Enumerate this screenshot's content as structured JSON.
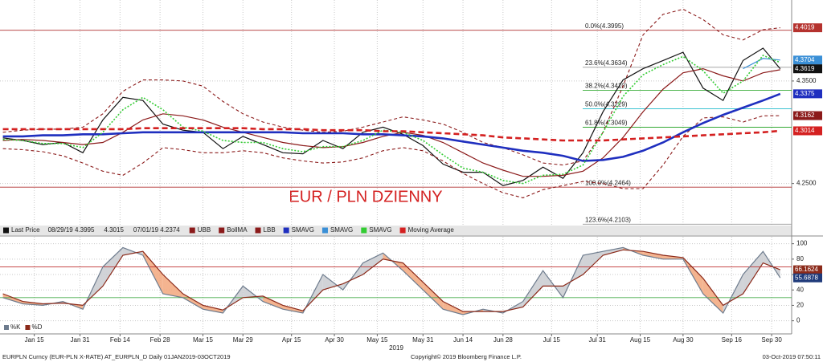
{
  "chart_data": [
    {
      "type": "line",
      "annotation": "EUR / PLN DZIENNY",
      "x": [
        "2019-01-04",
        "2019-01-11",
        "2019-01-18",
        "2019-01-25",
        "2019-02-01",
        "2019-02-08",
        "2019-02-15",
        "2019-02-22",
        "2019-03-01",
        "2019-03-08",
        "2019-03-15",
        "2019-03-22",
        "2019-03-29",
        "2019-04-05",
        "2019-04-12",
        "2019-04-19",
        "2019-04-26",
        "2019-05-03",
        "2019-05-10",
        "2019-05-17",
        "2019-05-24",
        "2019-05-31",
        "2019-06-07",
        "2019-06-14",
        "2019-06-21",
        "2019-06-28",
        "2019-07-05",
        "2019-07-12",
        "2019-07-19",
        "2019-07-26",
        "2019-08-02",
        "2019-08-09",
        "2019-08-16",
        "2019-08-23",
        "2019-08-30",
        "2019-09-06",
        "2019-09-13",
        "2019-09-20",
        "2019-09-27",
        "2019-10-03"
      ],
      "xlim": [
        "2019-01-03",
        "2019-10-07"
      ],
      "ylim": [
        4.209,
        4.429
      ],
      "yticks": [
        {
          "value": 4.25,
          "label": "4.2500"
        },
        {
          "value": 4.35,
          "label": "4.3500"
        }
      ],
      "grid": true,
      "legend_stats": [
        "08/29/19 4.3995",
        "4.3015",
        "07/01/19 4.2374"
      ],
      "series": [
        {
          "name": "Last Price",
          "color": "#111111",
          "style": "solid",
          "values": [
            4.2945,
            4.292,
            4.288,
            4.29,
            4.28,
            4.312,
            4.334,
            4.331,
            4.308,
            4.302,
            4.3,
            4.284,
            4.296,
            4.288,
            4.28,
            4.279,
            4.292,
            4.284,
            4.3,
            4.305,
            4.298,
            4.287,
            4.269,
            4.261,
            4.261,
            4.248,
            4.253,
            4.266,
            4.255,
            4.28,
            4.32,
            4.351,
            4.362,
            4.37,
            4.378,
            4.343,
            4.331,
            4.37,
            4.382,
            4.3619
          ]
        },
        {
          "name": "UBB",
          "color": "#8b1a1a",
          "style": "dashed",
          "values": [
            4.3,
            4.302,
            4.303,
            4.303,
            4.305,
            4.318,
            4.34,
            4.351,
            4.351,
            4.35,
            4.345,
            4.33,
            4.318,
            4.31,
            4.305,
            4.302,
            4.3,
            4.301,
            4.305,
            4.31,
            4.315,
            4.312,
            4.308,
            4.3,
            4.29,
            4.285,
            4.278,
            4.27,
            4.268,
            4.272,
            4.3,
            4.345,
            4.395,
            4.415,
            4.42,
            4.41,
            4.395,
            4.39,
            4.4,
            4.4019
          ]
        },
        {
          "name": "BollMA",
          "color": "#8b1a1a",
          "style": "solid",
          "values": [
            4.292,
            4.293,
            4.292,
            4.29,
            4.288,
            4.29,
            4.3,
            4.312,
            4.318,
            4.316,
            4.312,
            4.305,
            4.3,
            4.295,
            4.29,
            4.287,
            4.285,
            4.286,
            4.29,
            4.296,
            4.3,
            4.297,
            4.29,
            4.28,
            4.27,
            4.263,
            4.257,
            4.257,
            4.258,
            4.262,
            4.275,
            4.295,
            4.32,
            4.342,
            4.358,
            4.362,
            4.355,
            4.35,
            4.358,
            4.361
          ]
        },
        {
          "name": "LBB",
          "color": "#8b1a1a",
          "style": "dashed",
          "values": [
            4.284,
            4.283,
            4.281,
            4.277,
            4.27,
            4.262,
            4.258,
            4.27,
            4.285,
            4.283,
            4.28,
            4.28,
            4.282,
            4.28,
            4.275,
            4.272,
            4.27,
            4.271,
            4.275,
            4.282,
            4.285,
            4.282,
            4.272,
            4.26,
            4.25,
            4.241,
            4.236,
            4.244,
            4.248,
            4.252,
            4.25,
            4.245,
            4.245,
            4.268,
            4.296,
            4.314,
            4.315,
            4.31,
            4.316,
            4.3162
          ]
        },
        {
          "name": "SMAVG",
          "color": "#1f2fbf",
          "style": "thick",
          "values": [
            4.296,
            4.296,
            4.297,
            4.297,
            4.298,
            4.298,
            4.299,
            4.3,
            4.3,
            4.3,
            4.3,
            4.3,
            4.3,
            4.3,
            4.3,
            4.299,
            4.299,
            4.299,
            4.298,
            4.298,
            4.297,
            4.296,
            4.294,
            4.291,
            4.288,
            4.285,
            4.282,
            4.28,
            4.277,
            4.272,
            4.273,
            4.276,
            4.282,
            4.29,
            4.3,
            4.309,
            4.317,
            4.324,
            4.331,
            4.3375
          ]
        },
        {
          "name": "SMAVG",
          "color": "#3a8fd6",
          "style": "solid",
          "values": [
            null,
            null,
            null,
            null,
            null,
            null,
            null,
            null,
            null,
            null,
            null,
            null,
            null,
            null,
            null,
            null,
            null,
            null,
            null,
            null,
            null,
            null,
            null,
            null,
            null,
            null,
            null,
            null,
            null,
            null,
            null,
            null,
            null,
            null,
            null,
            null,
            null,
            4.362,
            4.372,
            4.3704
          ]
        },
        {
          "name": "SMAVG",
          "color": "#33cc33",
          "style": "dotted",
          "values": [
            4.293,
            4.292,
            4.289,
            4.289,
            4.285,
            4.3,
            4.322,
            4.334,
            4.322,
            4.305,
            4.301,
            4.292,
            4.29,
            4.29,
            4.284,
            4.281,
            4.286,
            4.286,
            4.292,
            4.302,
            4.3,
            4.292,
            4.278,
            4.265,
            4.261,
            4.253,
            4.25,
            4.258,
            4.259,
            4.268,
            4.3,
            4.335,
            4.356,
            4.366,
            4.374,
            4.36,
            4.338,
            4.35,
            4.375,
            4.368
          ]
        },
        {
          "name": "Moving Average",
          "color": "#d42020",
          "style": "thick-dashed",
          "values": [
            4.303,
            4.303,
            4.303,
            4.303,
            4.303,
            4.303,
            4.303,
            4.304,
            4.304,
            4.304,
            4.304,
            4.304,
            4.304,
            4.303,
            4.303,
            4.303,
            4.302,
            4.302,
            4.302,
            4.301,
            4.301,
            4.3,
            4.299,
            4.298,
            4.297,
            4.295,
            4.294,
            4.293,
            4.292,
            4.292,
            4.292,
            4.293,
            4.294,
            4.295,
            4.296,
            4.297,
            4.298,
            4.299,
            4.3,
            4.3014
          ]
        }
      ],
      "levels": [
        {
          "label": "0.0%(4.3995)",
          "value": 4.3995,
          "color": "#b03030"
        },
        {
          "label": "23.6%(4.3634)",
          "value": 4.3634,
          "color": "#999999"
        },
        {
          "label": "38.2%(4.3410)",
          "value": 4.341,
          "color": "#33aa33"
        },
        {
          "label": "50.0%(4.3229)",
          "value": 4.3229,
          "color": "#22bbcc"
        },
        {
          "label": "61.8%(4.3049)",
          "value": 4.3049,
          "color": "#33aa33"
        },
        {
          "label": "100.0%(4.2464)",
          "value": 4.2464,
          "color": "#b03030"
        },
        {
          "label": "123.6%(4.2103)",
          "value": 4.2103,
          "color": "#999999"
        }
      ],
      "axis_boxes": [
        {
          "value": 4.4019,
          "color": "#b5322e"
        },
        {
          "value": 4.3704,
          "color": "#3a8fd6"
        },
        {
          "value": 4.3619,
          "color": "#111111"
        },
        {
          "value": 4.3375,
          "color": "#1f2fbf"
        },
        {
          "value": 4.3162,
          "color": "#8b1a1a"
        },
        {
          "value": 4.3014,
          "color": "#d42020"
        }
      ]
    },
    {
      "type": "stochastic",
      "x_label": "2019",
      "x": [
        "2019-01-04",
        "2019-01-11",
        "2019-01-18",
        "2019-01-25",
        "2019-02-01",
        "2019-02-08",
        "2019-02-15",
        "2019-02-22",
        "2019-03-01",
        "2019-03-08",
        "2019-03-15",
        "2019-03-22",
        "2019-03-29",
        "2019-04-05",
        "2019-04-12",
        "2019-04-19",
        "2019-04-26",
        "2019-05-03",
        "2019-05-10",
        "2019-05-17",
        "2019-05-24",
        "2019-05-31",
        "2019-06-07",
        "2019-06-14",
        "2019-06-21",
        "2019-06-28",
        "2019-07-05",
        "2019-07-12",
        "2019-07-19",
        "2019-07-26",
        "2019-08-02",
        "2019-08-09",
        "2019-08-16",
        "2019-08-23",
        "2019-08-30",
        "2019-09-06",
        "2019-09-13",
        "2019-09-20",
        "2019-09-27",
        "2019-10-03"
      ],
      "xlim": [
        "2019-01-03",
        "2019-10-07"
      ],
      "xticks": [
        {
          "value": "2019-01-15",
          "label": "Jan 15"
        },
        {
          "value": "2019-01-31",
          "label": "Jan 31"
        },
        {
          "value": "2019-02-14",
          "label": "Feb 14"
        },
        {
          "value": "2019-02-28",
          "label": "Feb 28"
        },
        {
          "value": "2019-03-15",
          "label": "Mar 15"
        },
        {
          "value": "2019-03-29",
          "label": "Mar 29"
        },
        {
          "value": "2019-04-15",
          "label": "Apr 15"
        },
        {
          "value": "2019-04-30",
          "label": "Apr 30"
        },
        {
          "value": "2019-05-15",
          "label": "May 15"
        },
        {
          "value": "2019-05-31",
          "label": "May 31"
        },
        {
          "value": "2019-06-14",
          "label": "Jun 14"
        },
        {
          "value": "2019-06-28",
          "label": "Jun 28"
        },
        {
          "value": "2019-07-15",
          "label": "Jul 15"
        },
        {
          "value": "2019-07-31",
          "label": "Jul 31"
        },
        {
          "value": "2019-08-15",
          "label": "Aug 15"
        },
        {
          "value": "2019-08-30",
          "label": "Aug 30"
        },
        {
          "value": "2019-09-16",
          "label": "Sep 16"
        },
        {
          "value": "2019-09-30",
          "label": "Sep 30"
        }
      ],
      "ylim": [
        -16,
        109
      ],
      "yticks": [
        0,
        20,
        40,
        60,
        80,
        100
      ],
      "grid": true,
      "series": [
        {
          "name": "%K",
          "color": "#6d7b8d",
          "values": [
            30,
            22,
            20,
            25,
            15,
            70,
            95,
            85,
            35,
            30,
            15,
            10,
            45,
            25,
            15,
            10,
            60,
            40,
            75,
            88,
            65,
            40,
            15,
            8,
            15,
            10,
            25,
            65,
            30,
            85,
            90,
            95,
            85,
            80,
            80,
            35,
            10,
            60,
            90,
            55.6878
          ]
        },
        {
          "name": "%D",
          "color": "#8b2a1a",
          "values": [
            35,
            25,
            22,
            23,
            20,
            45,
            85,
            90,
            60,
            35,
            20,
            14,
            30,
            32,
            20,
            13,
            40,
            48,
            60,
            80,
            75,
            50,
            25,
            12,
            12,
            12,
            18,
            45,
            45,
            60,
            85,
            92,
            90,
            85,
            82,
            55,
            20,
            35,
            75,
            66.1624
          ]
        }
      ],
      "levels": [
        {
          "value": 70,
          "color": "#c03030"
        },
        {
          "value": 30,
          "color": "#4caf50"
        }
      ],
      "axis_boxes": [
        {
          "value": 66.1624,
          "color": "#8b2a1a"
        },
        {
          "value": 55.6878,
          "color": "#1f3a7a"
        }
      ]
    }
  ],
  "footer": {
    "left": "EURPLN Curncy (EUR-PLN X-RATE) AT_EURPLN_D  Daily 01JAN2019-03OCT2019",
    "center": "Copyright© 2019 Bloomberg Finance L.P.",
    "right": "03-Oct-2019 07:50:11"
  }
}
